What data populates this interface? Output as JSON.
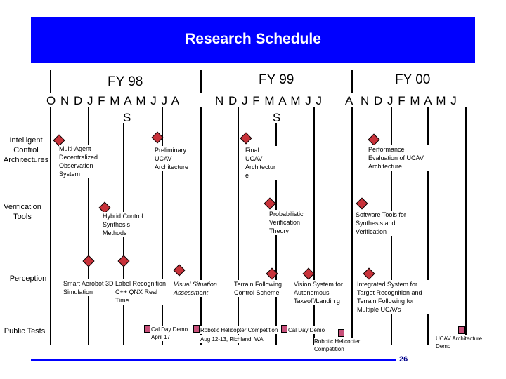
{
  "title": "Research Schedule",
  "fiscal_years": [
    "FY 98",
    "FY 99",
    "FY 00"
  ],
  "months_row": [
    "O N  D  J F M  A  M  J  J  A",
    "N  D  J F M  A  M J  J",
    "A",
    "N  D  J F M  A  M J"
  ],
  "months_suffix": "S",
  "rows": {
    "intelligent_control": "Intelligent Control Architectures",
    "verification": "Verification Tools",
    "perception": "Perception",
    "public_tests": "Public Tests"
  },
  "milestones": {
    "multi_agent": "Multi-Agent Decentralized Observation System",
    "preliminary": "Preliminary UCAV Architecture",
    "final": "Final UCAV Architectur e",
    "performance": "Performance Evaluation of UCAV Architecture",
    "hybrid": "Hybrid Control Synthesis Methods",
    "probabilistic": "Probabilistic Verification Theory",
    "software_tools": "Software Tools for Synthesis and Verification",
    "smart_aerobot": "Smart Aerobot 3D Simulation",
    "label_recognition": "Label Recognition C++ QNX Real Time",
    "visual_situation": "Visual Situation Assessment",
    "terrain_following": "Terrain Following Control Scheme",
    "vision_system": "Vision System for Autonomous Takeoff/Landin g",
    "integrated_system": "Integrated System for Target Recognition and Terrain Following for Multiple UCAVs",
    "cal_day_demo_1": "Cal Day Demo",
    "cal_day_demo_1_date": "April 17",
    "robotic_heli_1": "Robotic Helicopter Competition",
    "robotic_heli_1_date": "Aug 12-13, Richland, WA",
    "cal_day_demo_2": "Cal Day Demo",
    "robotic_heli_2": "Robotic Helicopter Competition",
    "ucav_demo": "UCAV Architecture Demo"
  },
  "page_number": "26",
  "colors": {
    "banner": "#0000ff",
    "diamond": "#c8323a",
    "rect": "#c8507a"
  }
}
